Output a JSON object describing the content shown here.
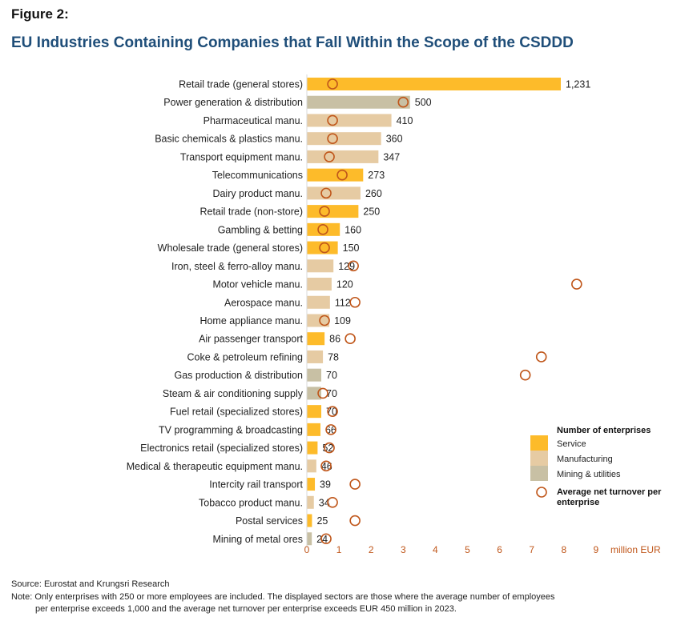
{
  "figure_label": "Figure 2:",
  "title": "EU Industries Containing Companies that Fall Within the Scope of the CSDDD",
  "source": "Source: Eurostat and Krungsri Research",
  "note_line1": "Note: Only enterprises with 250 or more employees are included. The displayed sectors are those where the average number of employees",
  "note_line2": "per enterprise exceeds 1,000 and the average net turnover per enterprise exceeds EUR 450 million in 2023.",
  "colors": {
    "Service": "#fdbb2a",
    "Manufacturing": "#e6cba3",
    "Mining & utilities": "#c8c0a4",
    "marker": "#c0571b"
  },
  "chart_data": {
    "type": "bar",
    "orientation": "horizontal",
    "x_axis_label": "million EUR",
    "x_ticks": [
      "0",
      "1",
      "2",
      "3",
      "4",
      "5",
      "6",
      "7",
      "8",
      "9"
    ],
    "x_range": [
      0,
      9
    ],
    "grid": false,
    "legend_position": "bottom-right",
    "legend": {
      "title": "Number of enterprises",
      "items": [
        "Service",
        "Manufacturing",
        "Mining & utilities"
      ],
      "marker_label": "Average net turnover per enterprise"
    },
    "bar_count_max": 1231,
    "categories": [
      "Retail trade (general stores)",
      "Power generation & distribution",
      "Pharmaceutical manu.",
      "Basic chemicals & plastics manu.",
      "Transport equipment manu.",
      "Telecommunications",
      "Dairy product manu.",
      "Retail trade (non-store)",
      "Gambling & betting",
      "Wholesale trade (general stores)",
      "Iron, steel & ferro-alloy manu.",
      "Motor vehicle manu.",
      "Aerospace manu.",
      "Home appliance manu.",
      "Air passenger transport",
      "Coke & petroleum refining",
      "Gas production & distribution",
      "Steam & air conditioning supply",
      "Fuel retail (specialized stores)",
      "TV programming & broadcasting",
      "Electronics retail (specialized stores)",
      "Medical & therapeutic equipment manu.",
      "Intercity rail transport",
      "Tobacco product manu.",
      "Postal services",
      "Mining of metal ores"
    ],
    "sector_group": [
      "Service",
      "Mining & utilities",
      "Manufacturing",
      "Manufacturing",
      "Manufacturing",
      "Service",
      "Manufacturing",
      "Service",
      "Service",
      "Service",
      "Manufacturing",
      "Manufacturing",
      "Manufacturing",
      "Manufacturing",
      "Service",
      "Manufacturing",
      "Mining & utilities",
      "Mining & utilities",
      "Service",
      "Service",
      "Service",
      "Manufacturing",
      "Service",
      "Manufacturing",
      "Service",
      "Mining & utilities"
    ],
    "series": [
      {
        "name": "Number of enterprises",
        "values": [
          1231,
          500,
          410,
          360,
          347,
          273,
          260,
          250,
          160,
          150,
          129,
          120,
          112,
          109,
          86,
          78,
          70,
          70,
          70,
          66,
          52,
          46,
          39,
          34,
          25,
          24
        ],
        "labels": [
          "1,231",
          "500",
          "410",
          "360",
          "347",
          "273",
          "260",
          "250",
          "160",
          "150",
          "129",
          "120",
          "112",
          "109",
          "86",
          "78",
          "70",
          "70",
          "70",
          "66",
          "52",
          "46",
          "39",
          "34",
          "25",
          "24"
        ]
      },
      {
        "name": "Average net turnover per enterprise",
        "values": [
          0.8,
          3.0,
          0.8,
          0.8,
          0.7,
          1.1,
          0.6,
          0.55,
          0.5,
          0.55,
          1.45,
          8.4,
          1.5,
          0.55,
          1.35,
          7.3,
          6.8,
          0.5,
          0.8,
          0.75,
          0.7,
          0.6,
          1.5,
          0.8,
          1.5,
          0.6
        ]
      }
    ]
  }
}
